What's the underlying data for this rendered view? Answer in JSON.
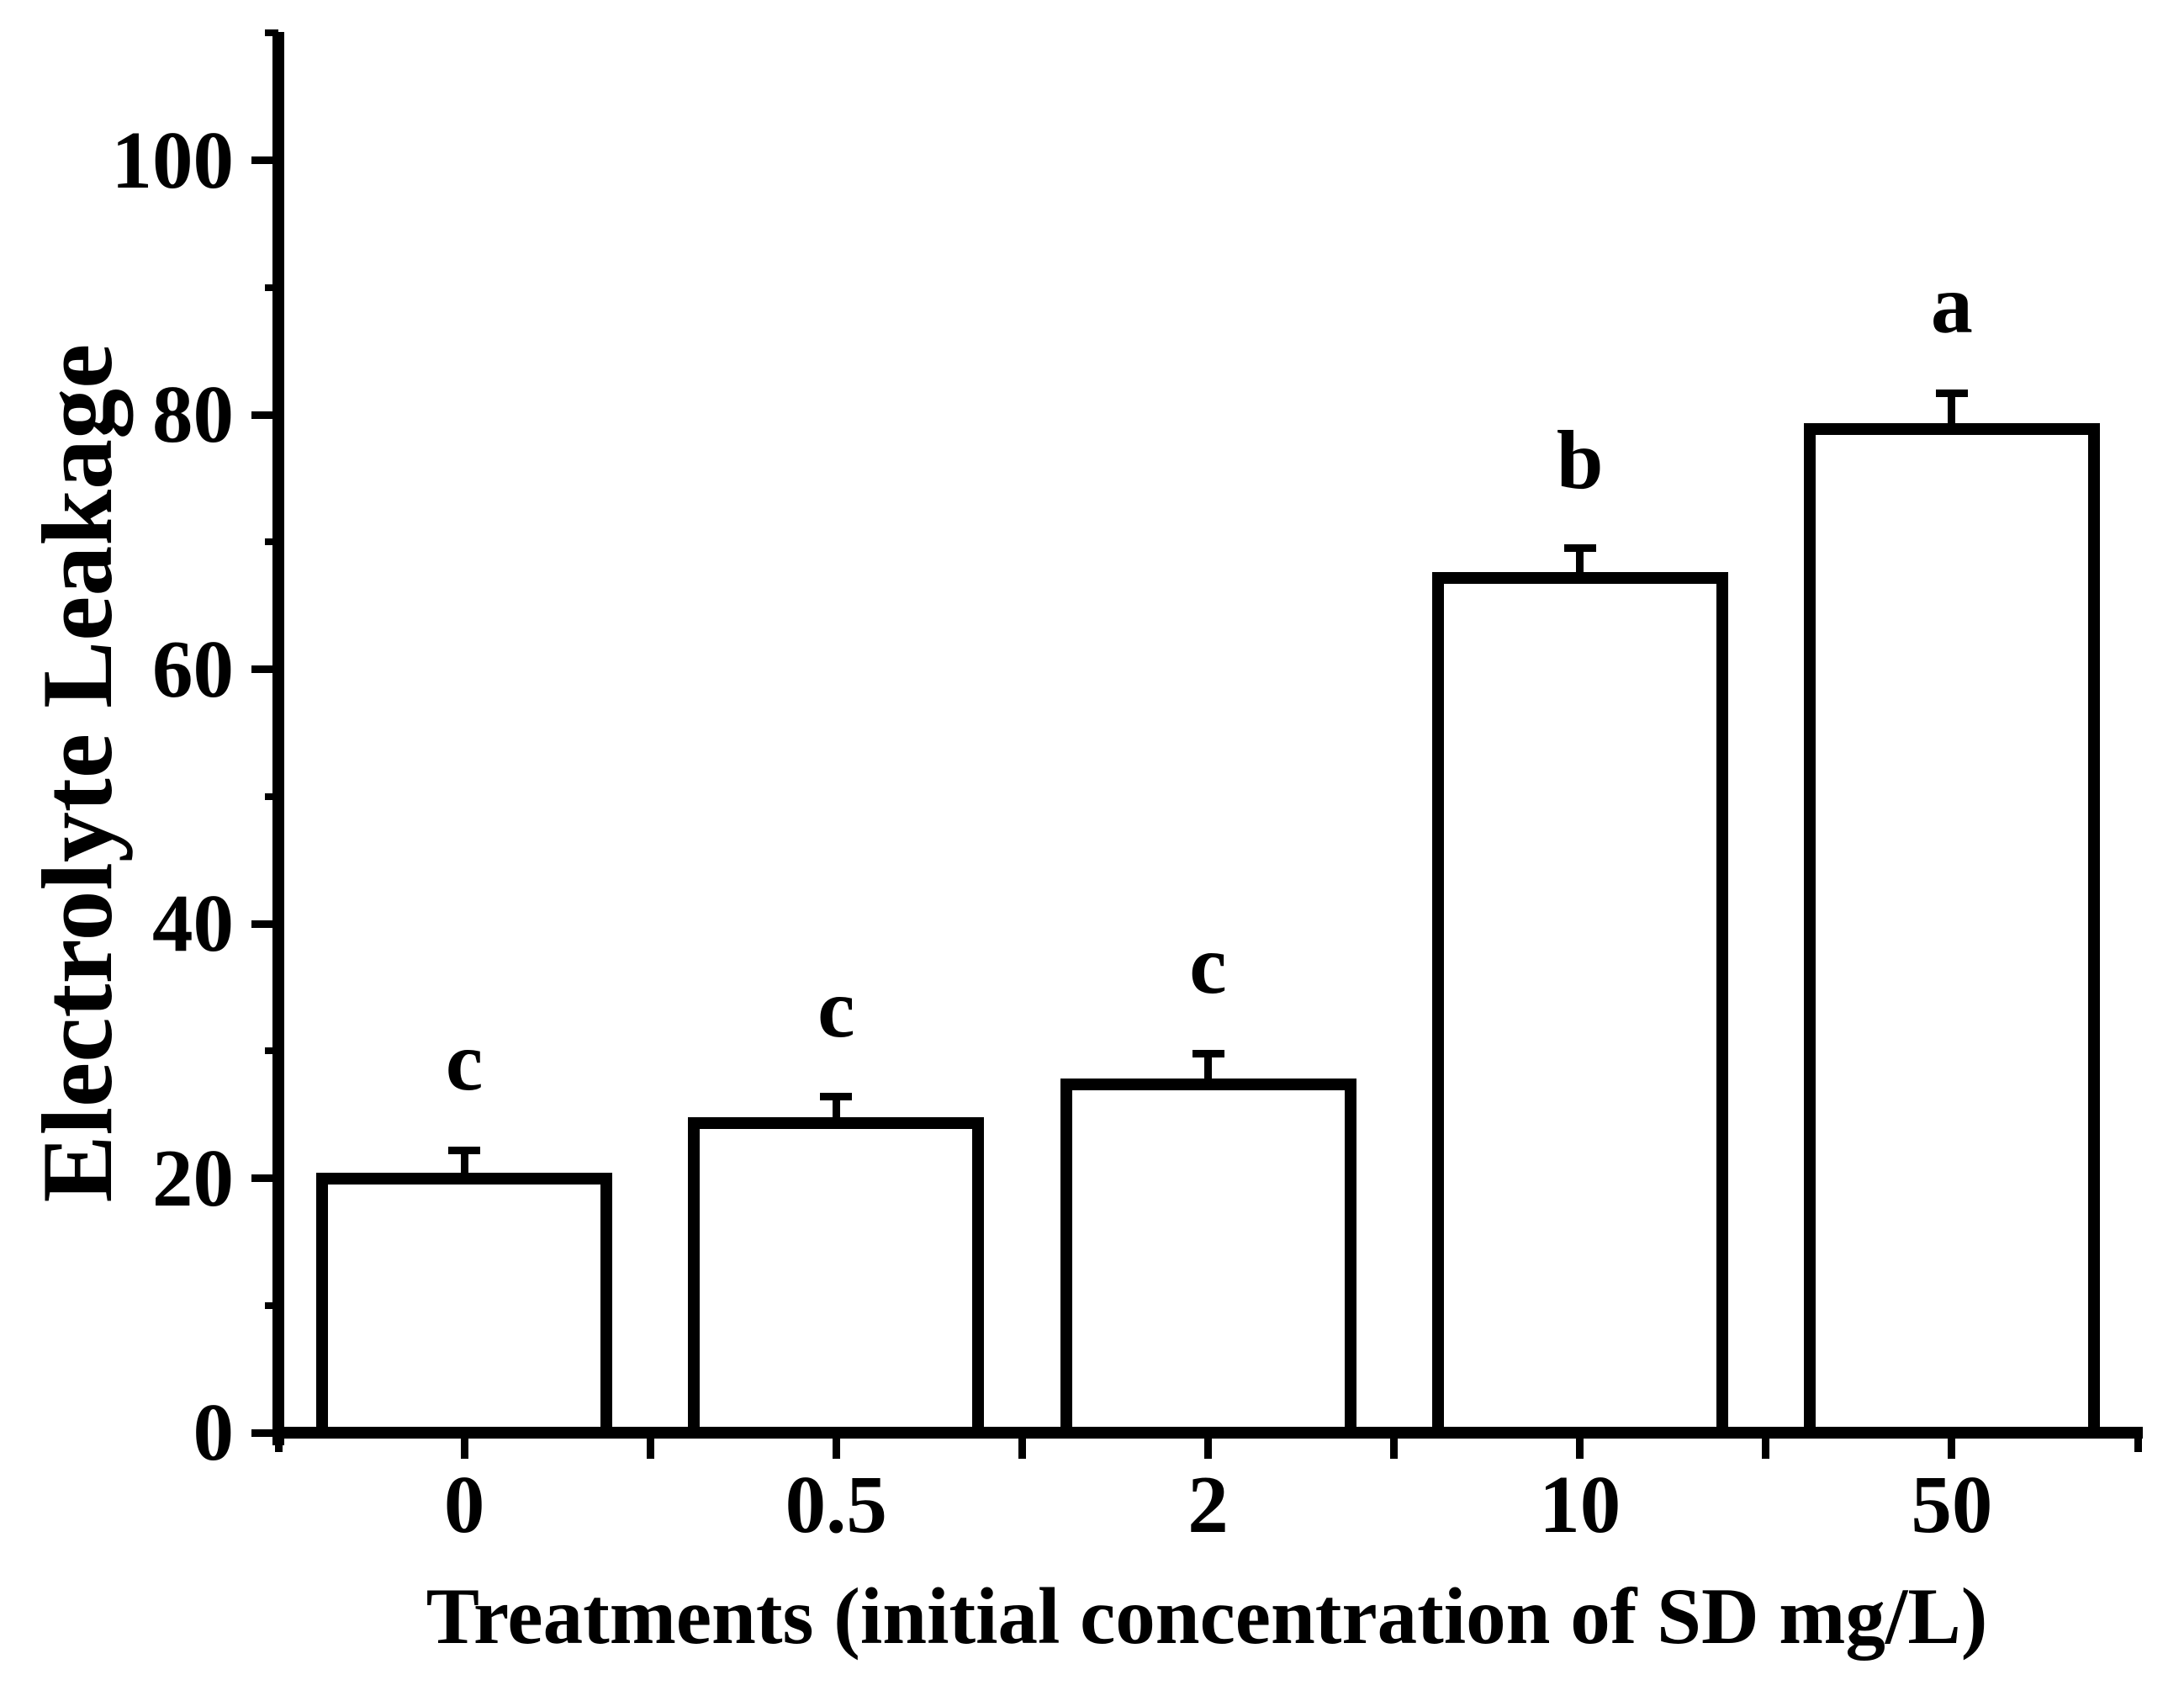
{
  "chart_data": {
    "type": "bar",
    "title": "",
    "xlabel": "Treatments (initial concentration of SD mg/L)",
    "ylabel": "Electrolyte Leakage",
    "categories": [
      "0",
      "0.5",
      "2",
      "10",
      "50"
    ],
    "values": [
      20.0,
      24.3,
      27.4,
      67.2,
      78.9
    ],
    "error_bars": [
      2.2,
      2.1,
      2.4,
      2.3,
      2.8
    ],
    "significance_letters": [
      "c",
      "c",
      "c",
      "b",
      "a"
    ],
    "yticks": [
      0,
      20,
      40,
      60,
      80,
      100
    ],
    "ytick_labels": [
      "0",
      "20",
      "40",
      "60",
      "80",
      "100"
    ],
    "yminor_ticks": [
      10,
      30,
      50,
      70,
      90,
      110
    ],
    "ylim": [
      0,
      110
    ],
    "grid": "off",
    "legend": "none",
    "bar_fill_color": "#ffffff",
    "bar_stroke_color": "#000000",
    "axis_color": "#000000",
    "background_color": "#ffffff"
  }
}
